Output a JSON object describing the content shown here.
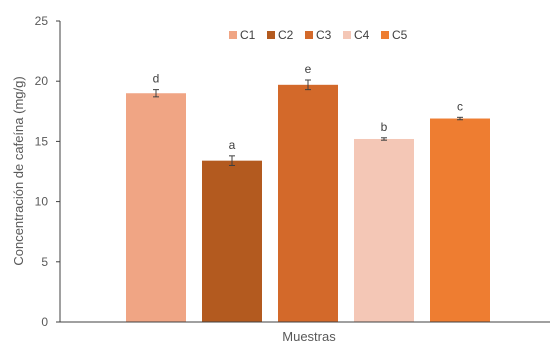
{
  "chart_data": {
    "type": "bar",
    "title": "",
    "xlabel": "Muestras",
    "ylabel": "Concentración de cafeína (mg/g)",
    "ylim": [
      0,
      25
    ],
    "yticks": [
      0,
      5,
      10,
      15,
      20,
      25
    ],
    "grid": false,
    "legend_position": "top-right",
    "categories": [
      "C1",
      "C2",
      "C3",
      "C4",
      "C5"
    ],
    "values": [
      19.0,
      13.4,
      19.7,
      15.2,
      16.9
    ],
    "errors": [
      0.3,
      0.4,
      0.4,
      0.1,
      0.1
    ],
    "data_labels": [
      "d",
      "a",
      "e",
      "b",
      "c"
    ],
    "colors": [
      "#F0A584",
      "#B35A1F",
      "#D3692A",
      "#F4C7B6",
      "#EE7D31"
    ]
  }
}
